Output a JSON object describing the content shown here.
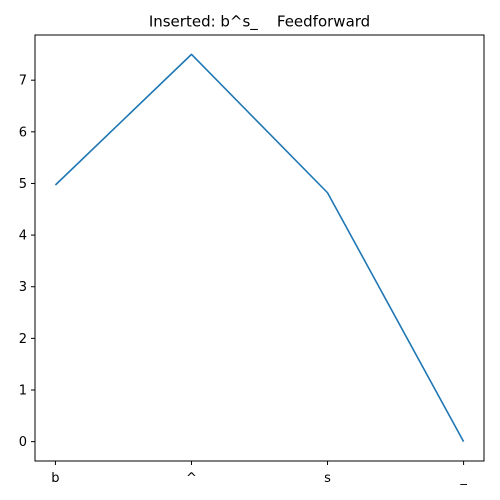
{
  "chart_data": {
    "type": "line",
    "title": "Inserted: b^s_    Feedforward",
    "xlabel": "",
    "ylabel": "",
    "categories": [
      "b",
      "^",
      "s",
      "_"
    ],
    "series": [
      {
        "values": [
          4.97,
          7.5,
          4.82,
          0.0
        ],
        "color": "#1f77b4"
      }
    ],
    "ylim": [
      -0.375,
      7.875
    ],
    "yticks": [
      0,
      1,
      2,
      3,
      4,
      5,
      6,
      7
    ],
    "grid": false,
    "legend": "none"
  }
}
